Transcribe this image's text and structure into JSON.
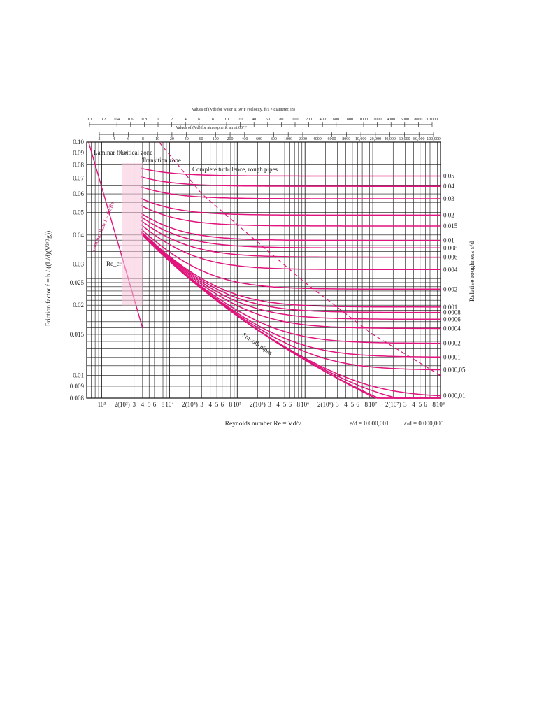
{
  "chart_data": {
    "type": "line",
    "title": "",
    "top_axis_water": {
      "label": "Values of (Vd) for water at 60°F (velocity, ft/s × diameter, in)",
      "ticks": [
        "0.1",
        "0.2",
        "0.4",
        "0.6",
        "0.8",
        "1",
        "2",
        "4",
        "6",
        "8",
        "10",
        "20",
        "40",
        "60",
        "80",
        "100",
        "200",
        "400",
        "600",
        "800",
        "1000",
        "2000",
        "4000",
        "6000",
        "8000",
        "10,000"
      ]
    },
    "top_axis_air": {
      "label": "Values of (Vd) for atmospheric air at 60°F",
      "ticks": [
        "2",
        "4",
        "6",
        "8",
        "10",
        "20",
        "40",
        "60",
        "100",
        "200",
        "400",
        "600",
        "800",
        "1000",
        "2000",
        "4000",
        "6000",
        "8000",
        "10,000",
        "20,000",
        "40,000",
        "60,000",
        "80,000",
        "100,000"
      ]
    },
    "xlabel": "Reynolds number Re = Vd/ν",
    "ylabel": "Friction factor f = h / ((L/d)(V²/2g))",
    "y2label": "Relative roughness ε/d",
    "xscale": "log",
    "yscale": "log",
    "xlim": [
      600,
      100000000
    ],
    "ylim": [
      0.008,
      0.1
    ],
    "x_tick_labels": [
      "10³",
      "2(10³)",
      "3",
      "4",
      "5",
      "6",
      "8",
      "10⁴",
      "2(10⁴)",
      "3",
      "4",
      "5",
      "6",
      "8",
      "10⁵",
      "2(10⁵)",
      "3",
      "4",
      "5",
      "6",
      "8",
      "10⁶",
      "2(10⁶)",
      "3",
      "4",
      "5",
      "6",
      "8",
      "10⁷",
      "2(10⁷)",
      "3",
      "4",
      "5",
      "6",
      "8",
      "10⁸"
    ],
    "y_tick_labels": [
      "0.10",
      "0.09",
      "0.08",
      "0.07",
      "0.06",
      "0.05",
      "0.04",
      "0.03",
      "0.025",
      "0.02",
      "0.015",
      "0.01",
      "0.009",
      "0.008"
    ],
    "y_tick_values": [
      0.1,
      0.09,
      0.08,
      0.07,
      0.06,
      0.05,
      0.04,
      0.03,
      0.025,
      0.02,
      0.015,
      0.01,
      0.009,
      0.008
    ],
    "roughness_labels": [
      "0.05",
      "0.04",
      "0.03",
      "0.02",
      "0.015",
      "0.01",
      "0.008",
      "0.006",
      "0.004",
      "0.002",
      "0.001",
      "0.0008",
      "0.0006",
      "0.0004",
      "0.0002",
      "0.0001",
      "0.000,05",
      "0.000,01"
    ],
    "roughness_values": [
      0.05,
      0.04,
      0.03,
      0.02,
      0.015,
      0.01,
      0.008,
      0.006,
      0.004,
      0.002,
      0.001,
      0.0008,
      0.0006,
      0.0004,
      0.0002,
      0.0001,
      5e-05,
      1e-05
    ],
    "smooth_extra_values": [
      5e-06,
      1e-06
    ],
    "bottom_annotations": [
      "ε/d = 0.000,001",
      "ε/d = 0.000,005"
    ],
    "region_labels": {
      "laminar_flow": "Laminar flow",
      "critical_zone": "Critical zone",
      "transition_zone": "Transition zone",
      "complete_turbulence": "Complete turbulence, rough pipes",
      "laminar_line": "Laminar flow f = 64/Re",
      "recr": "Re_cr",
      "smooth_pipes": "Smooth pipes"
    },
    "laminar_series": {
      "name": "f = 64/Re",
      "x": [
        640,
        2000,
        4000
      ],
      "y": [
        0.1,
        0.032,
        0.016
      ]
    },
    "color": "#e0147c"
  }
}
